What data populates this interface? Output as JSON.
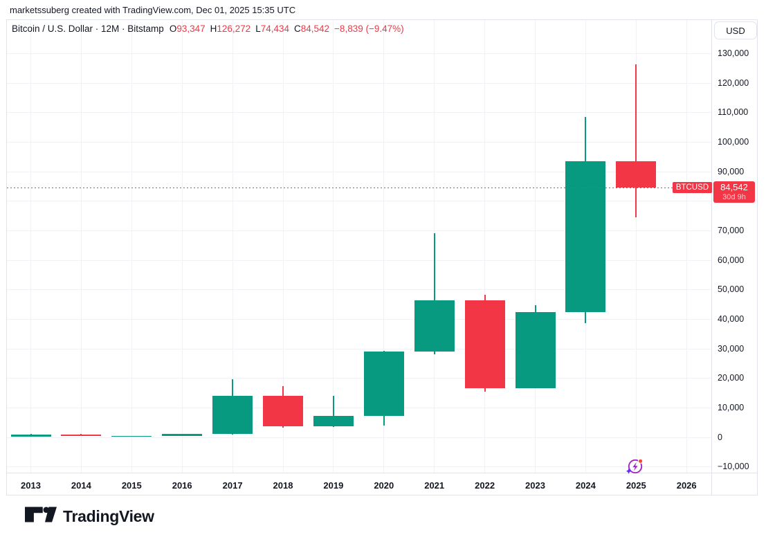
{
  "colors": {
    "up_candle": "#089981",
    "down_candle": "#f23645",
    "accent_red": "#f23645",
    "grid": "#f0f2f6",
    "frame_border": "#e0e3eb",
    "text": "#131722",
    "event_ring": "#a224c7",
    "event_dot": "#f5483d",
    "event_spark": "#5a31f4"
  },
  "attribution": {
    "text": "marketssuberg created with TradingView.com, Dec 01, 2025 15:35 UTC"
  },
  "legend": {
    "title": "Bitcoin / U.S. Dollar · 12M · Bitstamp",
    "ohlc": [
      {
        "label": "O",
        "value": "93,347"
      },
      {
        "label": "H",
        "value": "126,272"
      },
      {
        "label": "L",
        "value": "74,434"
      },
      {
        "label": "C",
        "value": "84,542"
      }
    ],
    "change": "−8,839 (−9.47%)"
  },
  "price_scale": {
    "currency_button": "USD",
    "ticks": [
      {
        "label": "130,000",
        "value": 130000
      },
      {
        "label": "120,000",
        "value": 120000
      },
      {
        "label": "110,000",
        "value": 110000
      },
      {
        "label": "100,000",
        "value": 100000
      },
      {
        "label": "90,000",
        "value": 90000
      },
      {
        "label": "70,000",
        "value": 70000
      },
      {
        "label": "60,000",
        "value": 60000
      },
      {
        "label": "50,000",
        "value": 50000
      },
      {
        "label": "40,000",
        "value": 40000
      },
      {
        "label": "30,000",
        "value": 30000
      },
      {
        "label": "20,000",
        "value": 20000
      },
      {
        "label": "10,000",
        "value": 10000
      },
      {
        "label": "0",
        "value": 0
      },
      {
        "label": "−10,000",
        "value": -10000
      }
    ]
  },
  "price_label": {
    "symbol": "BTCUSD",
    "price": "84,542",
    "countdown": "30d 9h",
    "price_value": 84542
  },
  "time_scale": {
    "years": [
      "2013",
      "2014",
      "2015",
      "2016",
      "2017",
      "2018",
      "2019",
      "2020",
      "2021",
      "2022",
      "2023",
      "2024",
      "2025",
      "2026"
    ]
  },
  "event_marker": {
    "year": "2025",
    "icon": "flash-circle-icon"
  },
  "footer": {
    "brand": "TradingView"
  },
  "chart_data": {
    "type": "candlestick",
    "title": "Bitcoin / U.S. Dollar",
    "interval": "12M",
    "exchange": "Bitstamp",
    "last_price": 84542,
    "y_axis": {
      "min_visible": -11600,
      "max_visible": 141000,
      "tick_step": 10000,
      "currency": "USD"
    },
    "x_axis": {
      "labels": [
        "2013",
        "2014",
        "2015",
        "2016",
        "2017",
        "2018",
        "2019",
        "2020",
        "2021",
        "2022",
        "2023",
        "2024",
        "2025",
        "2026"
      ]
    },
    "candles": [
      {
        "year": 2013,
        "open": 13,
        "high": 1163,
        "low": 13,
        "close": 732,
        "direction": "up"
      },
      {
        "year": 2014,
        "open": 732,
        "high": 1000,
        "low": 300,
        "close": 318,
        "direction": "down"
      },
      {
        "year": 2015,
        "open": 318,
        "high": 465,
        "low": 152,
        "close": 430,
        "direction": "up"
      },
      {
        "year": 2016,
        "open": 430,
        "high": 982,
        "low": 351,
        "close": 963,
        "direction": "up"
      },
      {
        "year": 2017,
        "open": 963,
        "high": 19666,
        "low": 752,
        "close": 13880,
        "direction": "up"
      },
      {
        "year": 2018,
        "open": 13880,
        "high": 17234,
        "low": 3122,
        "close": 3742,
        "direction": "down"
      },
      {
        "year": 2019,
        "open": 3742,
        "high": 13880,
        "low": 3322,
        "close": 7195,
        "direction": "up"
      },
      {
        "year": 2020,
        "open": 7195,
        "high": 29300,
        "low": 3850,
        "close": 28994,
        "direction": "up"
      },
      {
        "year": 2021,
        "open": 28994,
        "high": 69000,
        "low": 28130,
        "close": 46211,
        "direction": "up"
      },
      {
        "year": 2022,
        "open": 46211,
        "high": 48240,
        "low": 15460,
        "close": 16547,
        "direction": "down"
      },
      {
        "year": 2023,
        "open": 16547,
        "high": 44700,
        "low": 16499,
        "close": 42280,
        "direction": "up"
      },
      {
        "year": 2024,
        "open": 42280,
        "high": 108364,
        "low": 38505,
        "close": 93430,
        "direction": "up"
      },
      {
        "year": 2025,
        "open": 93347,
        "high": 126272,
        "low": 74434,
        "close": 84542,
        "direction": "down"
      }
    ]
  }
}
